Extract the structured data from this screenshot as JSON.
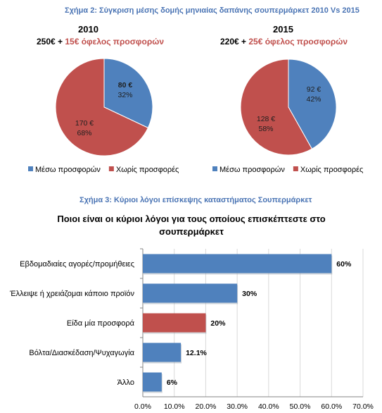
{
  "fig2_caption": "Σχήμα 2: Σύγκριση μέσης δομής μηνιαίας δαπάνης σουπερμάρκετ 2010 Vs 2015",
  "fig3_caption": "Σχήμα 3: Κύριοι λόγοι επίσκεψης καταστήματος Σουπερμάρκετ",
  "pie_2010": {
    "year": "2010",
    "subtitle_base": "250€ + ",
    "subtitle_highlight": "15€ όφελος προσφορών"
  },
  "pie_2015": {
    "year": "2015",
    "subtitle_base": "220€ + ",
    "subtitle_highlight": "25€ όφελος προσφορών"
  },
  "colors": {
    "blue": "#4f81bd",
    "red": "#c0504d",
    "grid": "#d9d9d9",
    "axis": "#868686"
  },
  "chart_data": [
    {
      "type": "pie",
      "title": "2010",
      "slices": [
        {
          "name": "Μέσω προσφορών",
          "value": 80,
          "value_label": "80 €",
          "percent": 32,
          "percent_label": "32%",
          "color": "#4f81bd"
        },
        {
          "name": "Χωρίς προσφορές",
          "value": 170,
          "value_label": "170 €",
          "percent": 68,
          "percent_label": "68%",
          "color": "#c0504d"
        }
      ],
      "legend": [
        "Μέσω προσφορών",
        "Χωρίς προσφορές"
      ],
      "legend_position": "bottom"
    },
    {
      "type": "pie",
      "title": "2015",
      "slices": [
        {
          "name": "Μέσω προσφορών",
          "value": 92,
          "value_label": "92 €",
          "percent": 42,
          "percent_label": "42%",
          "color": "#4f81bd"
        },
        {
          "name": "Χωρίς προσφορές",
          "value": 128,
          "value_label": "128 €",
          "percent": 58,
          "percent_label": "58%",
          "color": "#c0504d"
        }
      ],
      "legend": [
        "Μέσω προσφορών",
        "Χωρίς προσφορές"
      ],
      "legend_position": "bottom"
    },
    {
      "type": "bar",
      "orientation": "horizontal",
      "title": "Ποιοι είναι οι κύριοι λόγοι για τους οποίους επισκέπτεστε στο σουπερμάρκετ",
      "title_lines": [
        "Ποιοι είναι οι κύριοι λόγοι για τους οποίους επισκέπτεστε στο",
        "σουπερμάρκετ"
      ],
      "categories": [
        "Εβδομαδιαίες αγορές/προμήθειες",
        "Έλλειψε ή χρειάζομαι κάποιο προϊόν",
        "Είδα μία προσφορά",
        "Βόλτα/Διασκέδαση/Ψυχαγωγία",
        "Άλλο"
      ],
      "values": [
        60,
        30,
        20,
        12.1,
        6
      ],
      "value_labels": [
        "60%",
        "30%",
        "20%",
        "12.1%",
        "6%"
      ],
      "bar_colors": [
        "#4f81bd",
        "#4f81bd",
        "#c0504d",
        "#4f81bd",
        "#4f81bd"
      ],
      "xlim": [
        0,
        70
      ],
      "xticks": [
        "0.0%",
        "10.0%",
        "20.0%",
        "30.0%",
        "40.0%",
        "50.0%",
        "60.0%",
        "70.0%"
      ],
      "grid": true
    }
  ]
}
